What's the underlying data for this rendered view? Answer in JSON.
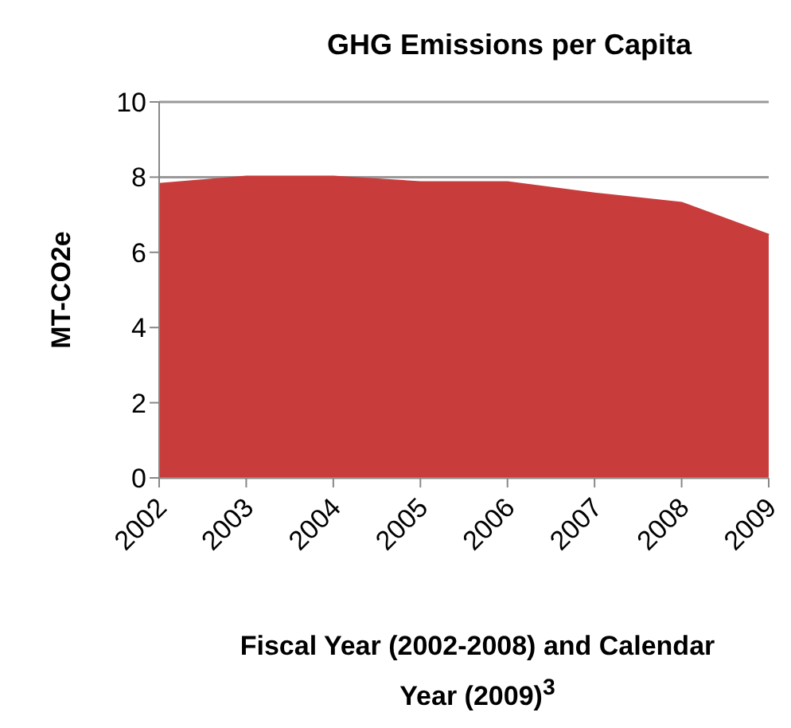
{
  "chart_data": {
    "type": "area",
    "title": "GHG Emissions per Capita",
    "xlabel": "Fiscal Year (2002-2008) and Calendar Year (2009)$^{3}$",
    "ylabel": "MT-CO2e",
    "categories": [
      "2002",
      "2003",
      "2004",
      "2005",
      "2006",
      "2007",
      "2008",
      "2009"
    ],
    "values": [
      7.8,
      8.0,
      8.0,
      7.85,
      7.85,
      7.55,
      7.3,
      6.45
    ],
    "color": "#c93c3c",
    "ylim": [
      0,
      10
    ],
    "yticks": [
      0,
      2,
      4,
      6,
      8,
      10
    ],
    "grid": "y"
  }
}
